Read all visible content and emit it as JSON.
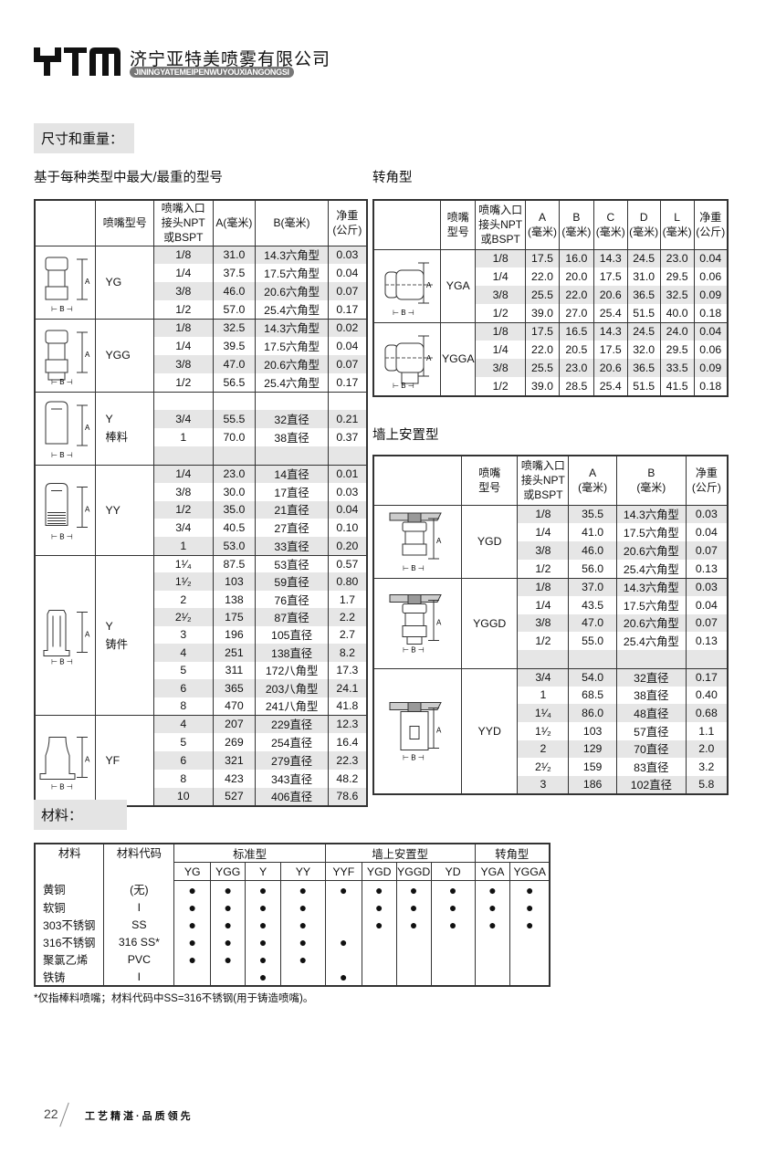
{
  "header": {
    "logo_text": "YTM",
    "company_cn": "济宁亚特美喷雾有限公司",
    "company_en": "JININGYATEMEIPENWUYOUXIANGONGSI"
  },
  "section_dims": "尺寸和重量：",
  "left_subtitle": "基于每种类型中最大/最重的型号",
  "right_subtitle_1": "转角型",
  "right_subtitle_2": "墙上安置型",
  "dims_table": {
    "headers": [
      "喷嘴型号",
      "喷嘴入口\n接头NPT\n或BSPT",
      "A(毫米)",
      "B(毫米)",
      "净重\n(公斤)"
    ],
    "groups": [
      {
        "model": "YG",
        "sub": "",
        "rows": [
          [
            "1/8",
            "31.0",
            "14.3六角型",
            "0.03"
          ],
          [
            "1/4",
            "37.5",
            "17.5六角型",
            "0.04"
          ],
          [
            "3/8",
            "46.0",
            "20.6六角型",
            "0.07"
          ],
          [
            "1/2",
            "57.0",
            "25.4六角型",
            "0.17"
          ]
        ]
      },
      {
        "model": "YGG",
        "sub": "",
        "rows": [
          [
            "1/8",
            "32.5",
            "14.3六角型",
            "0.02"
          ],
          [
            "1/4",
            "39.5",
            "17.5六角型",
            "0.04"
          ],
          [
            "3/8",
            "47.0",
            "20.6六角型",
            "0.07"
          ],
          [
            "1/2",
            "56.5",
            "25.4六角型",
            "0.17"
          ]
        ]
      },
      {
        "model": "Y",
        "sub": "棒料",
        "rows": [
          [
            "",
            "",
            "",
            ""
          ],
          [
            "3/4",
            "55.5",
            "32直径",
            "0.21"
          ],
          [
            "1",
            "70.0",
            "38直径",
            "0.37"
          ],
          [
            "",
            "",
            "",
            ""
          ]
        ]
      },
      {
        "model": "YY",
        "sub": "",
        "rows": [
          [
            "1/4",
            "23.0",
            "14直径",
            "0.01"
          ],
          [
            "3/8",
            "30.0",
            "17直径",
            "0.03"
          ],
          [
            "1/2",
            "35.0",
            "21直径",
            "0.04"
          ],
          [
            "3/4",
            "40.5",
            "27直径",
            "0.10"
          ],
          [
            "1",
            "53.0",
            "33直径",
            "0.20"
          ]
        ]
      },
      {
        "model": "Y",
        "sub": "铸件",
        "rows": [
          [
            "1¹⁄₄",
            "87.5",
            "53直径",
            "0.57"
          ],
          [
            "1¹⁄₂",
            "103",
            "59直径",
            "0.80"
          ],
          [
            "2",
            "138",
            "76直径",
            "1.7"
          ],
          [
            "2¹⁄₂",
            "175",
            "87直径",
            "2.2"
          ],
          [
            "3",
            "196",
            "105直径",
            "2.7"
          ],
          [
            "4",
            "251",
            "138直径",
            "8.2"
          ],
          [
            "5",
            "311",
            "172八角型",
            "17.3"
          ],
          [
            "6",
            "365",
            "203八角型",
            "24.1"
          ],
          [
            "8",
            "470",
            "241八角型",
            "41.8"
          ]
        ]
      },
      {
        "model": "YF",
        "sub": "",
        "rows": [
          [
            "4",
            "207",
            "229直径",
            "12.3"
          ],
          [
            "5",
            "269",
            "254直径",
            "16.4"
          ],
          [
            "6",
            "321",
            "279直径",
            "22.3"
          ],
          [
            "8",
            "423",
            "343直径",
            "48.2"
          ],
          [
            "10",
            "527",
            "406直径",
            "78.6"
          ]
        ]
      }
    ]
  },
  "angle_table": {
    "headers": [
      "喷嘴\n型号",
      "喷嘴入口\n接头NPT\n或BSPT",
      "A\n(毫米)",
      "B\n(毫米)",
      "C\n(毫米)",
      "D\n(毫米)",
      "L\n(毫米)",
      "净重\n(公斤)"
    ],
    "groups": [
      {
        "model": "YGA",
        "sub": "",
        "rows": [
          [
            "1/8",
            "17.5",
            "16.0",
            "14.3",
            "24.5",
            "23.0",
            "0.04"
          ],
          [
            "1/4",
            "22.0",
            "20.0",
            "17.5",
            "31.0",
            "29.5",
            "0.06"
          ],
          [
            "3/8",
            "25.5",
            "22.0",
            "20.6",
            "36.5",
            "32.5",
            "0.09"
          ],
          [
            "1/2",
            "39.0",
            "27.0",
            "25.4",
            "51.5",
            "40.0",
            "0.18"
          ]
        ]
      },
      {
        "model": "YGGA",
        "sub": "",
        "rows": [
          [
            "1/8",
            "17.5",
            "16.5",
            "14.3",
            "24.5",
            "24.0",
            "0.04"
          ],
          [
            "1/4",
            "22.0",
            "20.5",
            "17.5",
            "32.0",
            "29.5",
            "0.06"
          ],
          [
            "3/8",
            "25.5",
            "23.0",
            "20.6",
            "36.5",
            "33.5",
            "0.09"
          ],
          [
            "1/2",
            "39.0",
            "28.5",
            "25.4",
            "51.5",
            "41.5",
            "0.18"
          ]
        ]
      }
    ]
  },
  "wall_table": {
    "headers": [
      "喷嘴\n型号",
      "喷嘴入口\n接头NPT\n或BSPT",
      "A\n(毫米)",
      "B\n(毫米)",
      "净重\n(公斤)"
    ],
    "groups": [
      {
        "model": "YGD",
        "sub": "",
        "rows": [
          [
            "1/8",
            "35.5",
            "14.3六角型",
            "0.03"
          ],
          [
            "1/4",
            "41.0",
            "17.5六角型",
            "0.04"
          ],
          [
            "3/8",
            "46.0",
            "20.6六角型",
            "0.07"
          ],
          [
            "1/2",
            "56.0",
            "25.4六角型",
            "0.13"
          ]
        ]
      },
      {
        "model": "YGGD",
        "sub": "",
        "rows": [
          [
            "1/8",
            "37.0",
            "14.3六角型",
            "0.03"
          ],
          [
            "1/4",
            "43.5",
            "17.5六角型",
            "0.04"
          ],
          [
            "3/8",
            "47.0",
            "20.6六角型",
            "0.07"
          ],
          [
            "1/2",
            "55.0",
            "25.4六角型",
            "0.13"
          ],
          [
            "",
            "",
            "",
            ""
          ]
        ]
      },
      {
        "model": "YYD",
        "sub": "",
        "rows": [
          [
            "3/4",
            "54.0",
            "32直径",
            "0.17"
          ],
          [
            "1",
            "68.5",
            "38直径",
            "0.40"
          ],
          [
            "1¹⁄₄",
            "86.0",
            "48直径",
            "0.68"
          ],
          [
            "1¹⁄₂",
            "103",
            "57直径",
            "1.1"
          ],
          [
            "2",
            "129",
            "70直径",
            "2.0"
          ],
          [
            "2¹⁄₂",
            "159",
            "83直径",
            "3.2"
          ],
          [
            "3",
            "186",
            "102直径",
            "5.8"
          ]
        ]
      }
    ]
  },
  "section_mat": "材料：",
  "materials": {
    "col_material": "材料",
    "col_code": "材料代码",
    "groups": [
      {
        "label": "标准型",
        "models": [
          "YG",
          "YGG",
          "Y",
          "YY"
        ]
      },
      {
        "label": "墙上安置型",
        "models": [
          "YYF",
          "YGD",
          "YGGD",
          "YD"
        ]
      },
      {
        "label": "转角型",
        "models": [
          "YGA",
          "YGGA"
        ]
      }
    ],
    "dot": "●",
    "rows": [
      {
        "material": "黄铜",
        "code": "(无)",
        "avail": [
          1,
          1,
          1,
          1,
          1,
          1,
          1,
          1,
          1,
          1
        ]
      },
      {
        "material": "软铜",
        "code": "I",
        "avail": [
          1,
          1,
          1,
          1,
          0,
          1,
          1,
          1,
          1,
          1
        ]
      },
      {
        "material": "303不锈钢",
        "code": "SS",
        "avail": [
          1,
          1,
          1,
          1,
          0,
          1,
          1,
          1,
          1,
          1
        ]
      },
      {
        "material": "316不锈钢",
        "code": "316 SS*",
        "avail": [
          1,
          1,
          1,
          1,
          1,
          0,
          0,
          0,
          0,
          0
        ]
      },
      {
        "material": "聚氯乙烯",
        "code": "PVC",
        "avail": [
          1,
          1,
          1,
          1,
          0,
          0,
          0,
          0,
          0,
          0
        ]
      },
      {
        "material": "铁铸",
        "code": "I",
        "avail": [
          0,
          0,
          1,
          0,
          1,
          0,
          0,
          0,
          0,
          0
        ]
      }
    ]
  },
  "footnote": "*仅指棒料喷嘴；材料代码中SS=316不锈钢(用于铸造喷嘴)。",
  "footer": {
    "page_number": "22",
    "slogan": "工艺精湛·品质领先"
  }
}
